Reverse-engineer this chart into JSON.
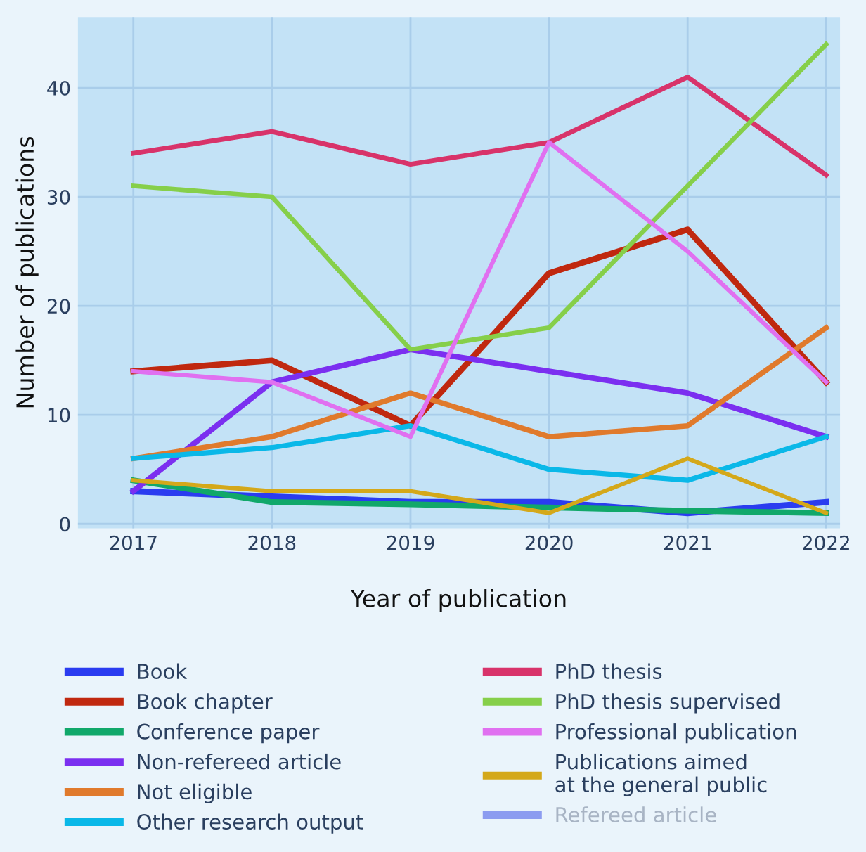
{
  "chart_data": {
    "type": "line",
    "xlabel": "Year of publication",
    "ylabel": "Number of publications",
    "x": [
      2017,
      2018,
      2019,
      2020,
      2021,
      2022
    ],
    "xlim": [
      2016.6,
      2022.1
    ],
    "xticks": [
      2017,
      2018,
      2019,
      2020,
      2021,
      2022
    ],
    "ylim": [
      -0.4,
      46.5
    ],
    "yticks": [
      0,
      10,
      20,
      30,
      40
    ],
    "grid": true,
    "legend": "bottom",
    "marker": "none",
    "line_style": "solid",
    "series": [
      {
        "name": "Book",
        "color": "#2a3cf0",
        "values": [
          3,
          2.5,
          2,
          2,
          1,
          2
        ]
      },
      {
        "name": "Book chapter",
        "color": "#c0280f",
        "values": [
          14,
          15,
          9,
          23,
          27,
          13
        ]
      },
      {
        "name": "Conference paper",
        "color": "#11a86a",
        "values": [
          4,
          2,
          1.8,
          1.5,
          1.2,
          1
        ]
      },
      {
        "name": "Non-refereed article",
        "color": "#7b2ff0",
        "values": [
          3,
          13,
          16,
          14,
          12,
          8
        ]
      },
      {
        "name": "Not eligible",
        "color": "#e07a2c",
        "values": [
          6,
          8,
          12,
          8,
          9,
          18
        ]
      },
      {
        "name": "Other research output",
        "color": "#0ab8e8",
        "values": [
          6,
          7,
          9,
          5,
          4,
          8
        ]
      },
      {
        "name": "PhD thesis",
        "color": "#d8336a",
        "values": [
          34,
          36,
          33,
          35,
          41,
          32
        ]
      },
      {
        "name": "PhD thesis supervised",
        "color": "#86cf4a",
        "values": [
          31,
          30,
          16,
          18,
          31,
          44
        ]
      },
      {
        "name": "Professional publication",
        "color": "#e070f0",
        "values": [
          14,
          13,
          8,
          35,
          25,
          13
        ]
      },
      {
        "name": "Publications aimed\nat the general public",
        "color": "#d4a81a",
        "values": [
          4,
          3,
          3,
          1,
          6,
          1
        ]
      },
      {
        "name": "Refereed article",
        "color": "#8c9cf0",
        "values": [
          null,
          null,
          null,
          null,
          null,
          null
        ]
      }
    ]
  }
}
